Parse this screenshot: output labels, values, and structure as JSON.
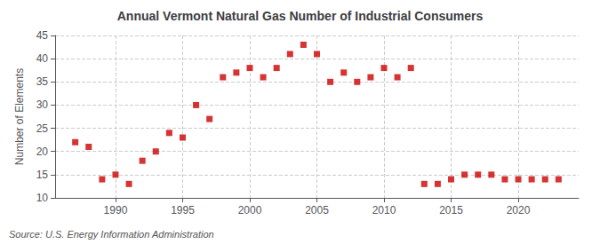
{
  "chart_data": {
    "type": "scatter",
    "title": "Annual Vermont Natural Gas Number of Industrial Consumers",
    "ylabel": "Number of Elements",
    "annotation": "Source: U.S. Energy Information Administration",
    "x": [
      1987,
      1988,
      1989,
      1990,
      1991,
      1992,
      1993,
      1994,
      1995,
      1996,
      1997,
      1998,
      1999,
      2000,
      2001,
      2002,
      2003,
      2004,
      2005,
      2006,
      2007,
      2008,
      2009,
      2010,
      2011,
      2012,
      2013,
      2014,
      2015,
      2016,
      2017,
      2018,
      2019,
      2020,
      2021,
      2022,
      2023
    ],
    "values": [
      22,
      21,
      14,
      15,
      13,
      18,
      20,
      24,
      23,
      30,
      27,
      36,
      37,
      38,
      36,
      38,
      41,
      43,
      41,
      35,
      37,
      35,
      36,
      38,
      36,
      38,
      13,
      13,
      14,
      15,
      15,
      15,
      14,
      14,
      14,
      14,
      14
    ],
    "color": "#cc0000",
    "marker": "square",
    "xlim": [
      1985.5,
      2024.5
    ],
    "xticks": [
      1990,
      1995,
      2000,
      2005,
      2010,
      2015,
      2020
    ],
    "ylim": [
      10,
      45
    ],
    "yticks": [
      10,
      15,
      20,
      25,
      30,
      35,
      40,
      45
    ],
    "grid": true
  }
}
